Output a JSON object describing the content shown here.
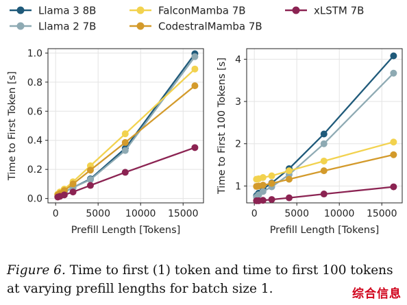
{
  "chart_data": [
    {
      "type": "line",
      "title": "",
      "xlabel": "Prefill Length [Tokens]",
      "ylabel": "Time to First Token [s]",
      "xlim": [
        -900,
        17400
      ],
      "ylim": [
        -0.03,
        1.03
      ],
      "xticks": [
        0,
        5000,
        10000,
        15000
      ],
      "xtick_labels": [
        "0",
        "5000",
        "10000",
        "15000"
      ],
      "yticks": [
        0.0,
        0.2,
        0.4,
        0.6,
        0.8,
        1.0
      ],
      "ytick_labels": [
        "0.0",
        "0.2",
        "0.4",
        "0.6",
        "0.8",
        "1.0"
      ],
      "grid": true,
      "x": [
        256,
        512,
        1024,
        2048,
        4096,
        8192,
        16384
      ],
      "series": [
        {
          "name": "Llama 3 8B",
          "color": "#1f5a7a",
          "values": [
            0.015,
            0.025,
            0.045,
            0.075,
            0.135,
            0.345,
            0.995
          ]
        },
        {
          "name": "Llama 2 7B",
          "color": "#8eaab3",
          "values": [
            0.015,
            0.025,
            0.045,
            0.075,
            0.13,
            0.33,
            0.975
          ]
        },
        {
          "name": "FalconMamba 7B",
          "color": "#f2d24e",
          "values": [
            0.03,
            0.045,
            0.065,
            0.115,
            0.225,
            0.445,
            0.89
          ]
        },
        {
          "name": "CodestralMamba 7B",
          "color": "#d39a2b",
          "values": [
            0.025,
            0.035,
            0.055,
            0.1,
            0.195,
            0.385,
            0.775
          ]
        },
        {
          "name": "xLSTM 7B",
          "color": "#8b2352",
          "values": [
            0.01,
            0.015,
            0.025,
            0.045,
            0.09,
            0.18,
            0.35
          ]
        }
      ]
    },
    {
      "type": "line",
      "title": "",
      "xlabel": "Prefill Length [Tokens]",
      "ylabel": "Time to First 100 Tokens [s]",
      "xlim": [
        -900,
        17400
      ],
      "ylim": [
        0.6,
        4.25
      ],
      "xticks": [
        0,
        5000,
        10000,
        15000
      ],
      "xtick_labels": [
        "0",
        "5000",
        "10000",
        "15000"
      ],
      "yticks": [
        1,
        2,
        3,
        4
      ],
      "ytick_labels": [
        "1",
        "2",
        "3",
        "4"
      ],
      "grid": true,
      "x": [
        256,
        512,
        1024,
        2048,
        4096,
        8192,
        16384
      ],
      "series": [
        {
          "name": "Llama 3 8B",
          "color": "#1f5a7a",
          "values": [
            0.77,
            0.83,
            0.93,
            1.07,
            1.41,
            2.23,
            4.08
          ]
        },
        {
          "name": "Llama 2 7B",
          "color": "#8eaab3",
          "values": [
            0.74,
            0.79,
            0.87,
            0.98,
            1.27,
            2.0,
            3.67
          ]
        },
        {
          "name": "FalconMamba 7B",
          "color": "#f2d24e",
          "values": [
            1.16,
            1.17,
            1.2,
            1.24,
            1.36,
            1.59,
            2.04
          ]
        },
        {
          "name": "CodestralMamba 7B",
          "color": "#d39a2b",
          "values": [
            0.99,
            1.0,
            1.02,
            1.06,
            1.16,
            1.36,
            1.74
          ]
        },
        {
          "name": "xLSTM 7B",
          "color": "#8b2352",
          "values": [
            0.65,
            0.65,
            0.66,
            0.68,
            0.72,
            0.81,
            0.98
          ]
        }
      ]
    }
  ],
  "legend": {
    "placement": "top",
    "items": [
      {
        "name": "Llama 3 8B",
        "color": "#1f5a7a"
      },
      {
        "name": "Llama 2 7B",
        "color": "#8eaab3"
      },
      {
        "name": "FalconMamba 7B",
        "color": "#f2d24e"
      },
      {
        "name": "CodestralMamba 7B",
        "color": "#d39a2b"
      },
      {
        "name": "xLSTM 7B",
        "color": "#8b2352"
      }
    ]
  },
  "caption": {
    "label": "Figure 6.",
    "text": " Time to first (1) token and time to first 100 tokens at varying prefill lengths for batch size 1."
  },
  "watermark": "综合信息"
}
